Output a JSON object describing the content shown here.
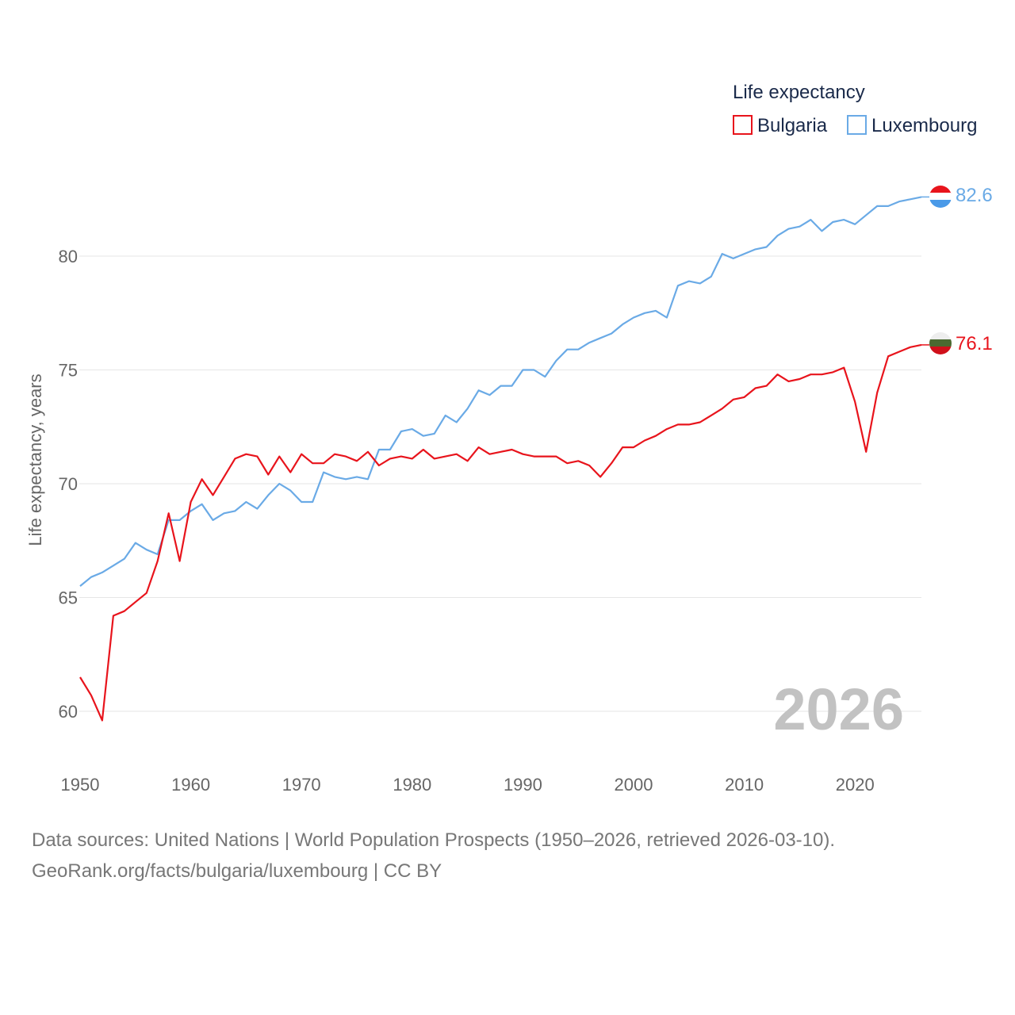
{
  "chart_data": {
    "type": "line",
    "title": "",
    "xlabel": "",
    "ylabel": "Life expectancy, years",
    "xlim": [
      1950,
      2026
    ],
    "ylim": [
      58.5,
      83
    ],
    "x_ticks": [
      1950,
      1960,
      1970,
      1980,
      1990,
      2000,
      2010,
      2020
    ],
    "y_ticks": [
      60,
      65,
      70,
      75,
      80
    ],
    "grid": true,
    "legend": {
      "title": "Life expectancy",
      "position": "top-right",
      "entries": [
        {
          "label": "Bulgaria",
          "color": "#e8141c"
        },
        {
          "label": "Luxembourg",
          "color": "#6aaae6"
        }
      ]
    },
    "year_label": "2026",
    "x": [
      1950,
      1951,
      1952,
      1953,
      1954,
      1955,
      1956,
      1957,
      1958,
      1959,
      1960,
      1961,
      1962,
      1963,
      1964,
      1965,
      1966,
      1967,
      1968,
      1969,
      1970,
      1971,
      1972,
      1973,
      1974,
      1975,
      1976,
      1977,
      1978,
      1979,
      1980,
      1981,
      1982,
      1983,
      1984,
      1985,
      1986,
      1987,
      1988,
      1989,
      1990,
      1991,
      1992,
      1993,
      1994,
      1995,
      1996,
      1997,
      1998,
      1999,
      2000,
      2001,
      2002,
      2003,
      2004,
      2005,
      2006,
      2007,
      2008,
      2009,
      2010,
      2011,
      2012,
      2013,
      2014,
      2015,
      2016,
      2017,
      2018,
      2019,
      2020,
      2021,
      2022,
      2023,
      2024,
      2025,
      2026
    ],
    "series": [
      {
        "name": "Bulgaria",
        "color": "#e8141c",
        "end_label": "76.1",
        "flag": "bulgaria-flag",
        "values": [
          61.5,
          60.7,
          59.6,
          64.2,
          64.4,
          64.8,
          65.2,
          66.6,
          68.7,
          66.6,
          69.2,
          70.2,
          69.5,
          70.3,
          71.1,
          71.3,
          71.2,
          70.4,
          71.2,
          70.5,
          71.3,
          70.9,
          70.9,
          71.3,
          71.2,
          71.0,
          71.4,
          70.8,
          71.1,
          71.2,
          71.1,
          71.5,
          71.1,
          71.2,
          71.3,
          71.0,
          71.6,
          71.3,
          71.4,
          71.5,
          71.3,
          71.2,
          71.2,
          71.2,
          70.9,
          71.0,
          70.8,
          70.3,
          70.9,
          71.6,
          71.6,
          71.9,
          72.1,
          72.4,
          72.6,
          72.6,
          72.7,
          73.0,
          73.3,
          73.7,
          73.8,
          74.2,
          74.3,
          74.8,
          74.5,
          74.6,
          74.8,
          74.8,
          74.9,
          75.1,
          73.6,
          71.4,
          74.0,
          75.6,
          75.8,
          76.0,
          76.1
        ]
      },
      {
        "name": "Luxembourg",
        "color": "#6aaae6",
        "end_label": "82.6",
        "flag": "luxembourg-flag",
        "values": [
          65.5,
          65.9,
          66.1,
          66.4,
          66.7,
          67.4,
          67.1,
          66.9,
          68.4,
          68.4,
          68.8,
          69.1,
          68.4,
          68.7,
          68.8,
          69.2,
          68.9,
          69.5,
          70.0,
          69.7,
          69.2,
          69.2,
          70.5,
          70.3,
          70.2,
          70.3,
          70.2,
          71.5,
          71.5,
          72.3,
          72.4,
          72.1,
          72.2,
          73.0,
          72.7,
          73.3,
          74.1,
          73.9,
          74.3,
          74.3,
          75.0,
          75.0,
          74.7,
          75.4,
          75.9,
          75.9,
          76.2,
          76.4,
          76.6,
          77.0,
          77.3,
          77.5,
          77.6,
          77.3,
          78.7,
          78.9,
          78.8,
          79.1,
          80.1,
          79.9,
          80.1,
          80.3,
          80.4,
          80.9,
          81.2,
          81.3,
          81.6,
          81.1,
          81.5,
          81.6,
          81.4,
          81.8,
          82.2,
          82.2,
          82.4,
          82.5,
          82.6
        ]
      }
    ]
  },
  "source": {
    "line1": "Data sources: United Nations | World Population Prospects (1950–2026, retrieved 2026-03-10).",
    "line2": "GeoRank.org/facts/bulgaria/luxembourg | CC BY"
  }
}
